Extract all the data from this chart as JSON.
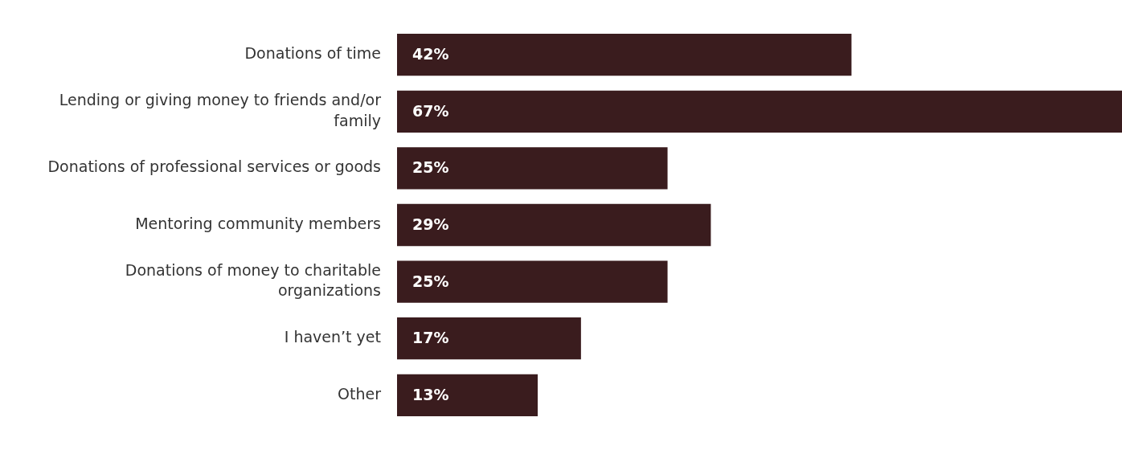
{
  "chart_data": {
    "type": "bar",
    "orientation": "horizontal",
    "categories": [
      "Donations of time",
      "Lending or giving money to friends and/or family",
      "Donations of professional services or goods",
      "Mentoring community members",
      "Donations of money to charitable organizations",
      "I haven’t yet",
      "Other"
    ],
    "values": [
      42,
      67,
      25,
      29,
      25,
      17,
      13
    ],
    "value_labels": [
      "42%",
      "67%",
      "25%",
      "29%",
      "25%",
      "17%",
      "13%"
    ],
    "color": "#3a1c1e",
    "grid": false,
    "legend": false
  }
}
